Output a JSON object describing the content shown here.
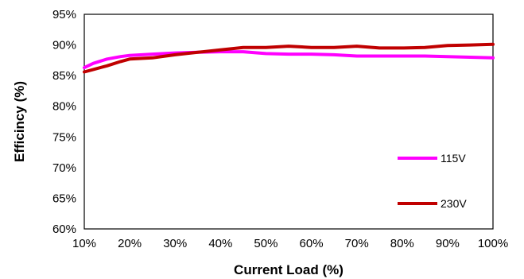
{
  "chart_data": {
    "type": "line",
    "title": "",
    "xlabel": "Current Load (%)",
    "ylabel": "Efficincy (%)",
    "xlim": [
      10,
      100
    ],
    "ylim": [
      60,
      95
    ],
    "x_ticks": [
      "10%",
      "20%",
      "30%",
      "40%",
      "50%",
      "60%",
      "70%",
      "80%",
      "90%",
      "100%"
    ],
    "y_ticks": [
      "60%",
      "65%",
      "70%",
      "75%",
      "80%",
      "85%",
      "90%",
      "95%"
    ],
    "grid": false,
    "legend_position": "bottom-right",
    "series": [
      {
        "name": "115V",
        "color": "#ff00ff",
        "x": [
          10,
          12,
          15,
          18,
          20,
          25,
          30,
          35,
          40,
          45,
          50,
          55,
          60,
          65,
          70,
          75,
          80,
          85,
          90,
          95,
          100
        ],
        "y": [
          86.3,
          87.0,
          87.7,
          88.1,
          88.3,
          88.5,
          88.7,
          88.8,
          88.9,
          88.9,
          88.6,
          88.5,
          88.5,
          88.4,
          88.2,
          88.2,
          88.2,
          88.2,
          88.1,
          88.0,
          87.9
        ]
      },
      {
        "name": "230V",
        "color": "#c00000",
        "x": [
          10,
          12,
          15,
          18,
          20,
          25,
          30,
          35,
          40,
          45,
          50,
          55,
          60,
          65,
          70,
          75,
          80,
          85,
          90,
          95,
          100
        ],
        "y": [
          85.6,
          86.0,
          86.6,
          87.3,
          87.7,
          87.9,
          88.4,
          88.8,
          89.2,
          89.6,
          89.6,
          89.8,
          89.6,
          89.6,
          89.8,
          89.5,
          89.5,
          89.6,
          89.9,
          90.0,
          90.1
        ]
      }
    ]
  }
}
